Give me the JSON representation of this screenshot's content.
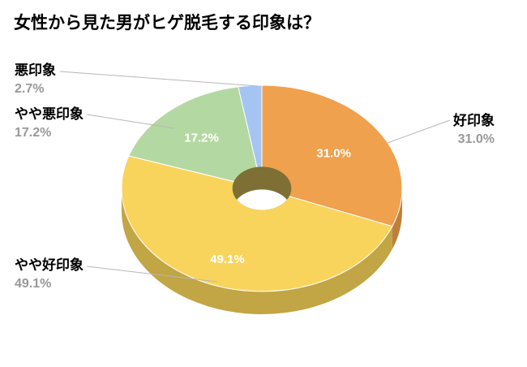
{
  "page": {
    "background": "#ffffff"
  },
  "chart_data": {
    "type": "pie",
    "subtype": "donut-3d",
    "title": "女性から見た男がヒゲ脱毛する印象は？",
    "total": 100,
    "unit": "%",
    "start_angle_deg": -90,
    "direction": "clockwise",
    "legend_position": "none",
    "labels_outside": true,
    "slices": [
      {
        "label": "好印象",
        "value": 31.0,
        "percent_label": "31.0%",
        "color": "#EFA14E",
        "side_color": "#BE7F3C"
      },
      {
        "label": "やや好印象",
        "value": 49.1,
        "percent_label": "49.1%",
        "color": "#F9D45C",
        "side_color": "#C2A544"
      },
      {
        "label": "やや悪印象",
        "value": 17.2,
        "percent_label": "17.2%",
        "color": "#B4D8A2",
        "side_color": "#8CAE7D"
      },
      {
        "label": "悪印象",
        "value": 2.7,
        "percent_label": "2.7%",
        "color": "#A5C4F2",
        "side_color": "#7E99C4"
      }
    ],
    "hole_wall_color": "#7E7034",
    "hole_floor_color": "#FFFFFF",
    "inner_label_color": "#FFFFFF",
    "callout_text_color": "#000000",
    "callout_percent_color": "#999999",
    "leader_line_color": "#B7B7B7"
  }
}
